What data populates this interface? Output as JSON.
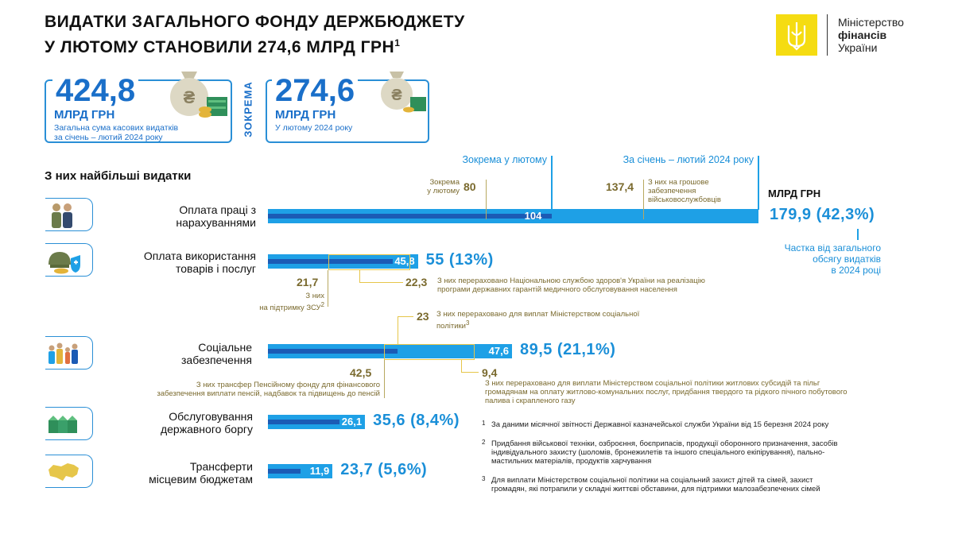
{
  "header": {
    "title_line1": "ВИДАТКИ ЗАГАЛЬНОГО ФОНДУ ДЕРЖБЮДЖЕТУ",
    "title_line2": "У ЛЮТОМУ СТАНОВИЛИ 274,6 МЛРД ГРН",
    "title_footnote": "1"
  },
  "logo": {
    "line1": "Міністерство",
    "line2": "фінансів",
    "line3": "України",
    "color": "#f5dc12"
  },
  "summary": {
    "total": {
      "value": "424,8",
      "unit": "МЛРД ГРН",
      "caption1": "Загальна сума касових видатків",
      "caption2": "за січень – лютий 2024 року"
    },
    "zokrema": "ЗОКРЕМА",
    "month": {
      "value": "274,6",
      "unit": "МЛРД ГРН",
      "caption1": "У лютому 2024 року"
    }
  },
  "section_title": "З них найбільші видатки",
  "units_label": "МЛРД ГРН",
  "legend": {
    "month": "Зокрема у лютому",
    "period": "За січень – лютий 2024 року"
  },
  "chart_data": {
    "type": "bar",
    "orientation": "horizontal",
    "categories": [
      "Оплата праці з нарахуваннями",
      "Оплата використання товарів і послуг",
      "Соціальне забезпечення",
      "Обслуговування державного боргу",
      "Трансферти місцевим бюджетам"
    ],
    "series": [
      {
        "name": "За січень – лютий 2024 року",
        "values": [
          179.9,
          55,
          89.5,
          35.6,
          23.7
        ]
      },
      {
        "name": "Зокрема у лютому",
        "values": [
          104,
          45.8,
          47.6,
          26.1,
          11.9
        ]
      }
    ],
    "total_labels": [
      "179,9 (42,3%)",
      "55 (13%)",
      "89,5 (21,1%)",
      "35,6 (8,4%)",
      "23,7 (5,6%)"
    ],
    "month_labels": [
      "104",
      "45,8",
      "47,6",
      "26,1",
      "11,9"
    ],
    "xlim": [
      0,
      179.9
    ],
    "colors": {
      "period": "#1ea0e6",
      "month": "#1b5bb5",
      "accent": "#e6c64a"
    }
  },
  "rows": [
    {
      "label1": "Оплата праці з",
      "label2": "нарахуваннями",
      "icon": "soldier-worker-icon"
    },
    {
      "label1": "Оплата використання",
      "label2": "товарів і послуг",
      "icon": "helmet-medical-icon"
    },
    {
      "label1": "Соціальне",
      "label2": "забезпечення",
      "icon": "family-icon"
    },
    {
      "label1": "Обслуговування",
      "label2": "державного боргу",
      "icon": "money-stacks-icon"
    },
    {
      "label1": "Трансферти",
      "label2": "місцевим бюджетам",
      "icon": "ukraine-map-icon"
    }
  ],
  "annotations": {
    "salary_feb_value": "80",
    "salary_feb_label1": "Зокрема",
    "salary_feb_label2": "у лютому",
    "salary_military_value": "137,4",
    "salary_military_label1": "З них на грошове",
    "salary_military_label2": "забезпечення",
    "salary_military_label3": "військовослужбовців",
    "share_label1": "Частка від загального",
    "share_label2": "обсягу видатків",
    "share_label3": "в 2024 році",
    "goods_zsu_value": "21,7",
    "goods_zsu_label1": "З них",
    "goods_zsu_label2": "на підтримку ЗСУ",
    "goods_zsu_fn": "2",
    "goods_nszu_value": "22,3",
    "goods_nszu_label1": "З них перераховано Національною службою здоров'я України на реалізацію",
    "goods_nszu_label2": "програми державних гарантій медичного обслуговування населення",
    "social_min_value": "23",
    "social_min_label1": "З них перераховано для виплат Міністерством соціальної",
    "social_min_label2": "політики",
    "social_min_fn": "3",
    "social_pension_value": "42,5",
    "social_pension_label1": "З них трансфер Пенсійному фонду для фінансового",
    "social_pension_label2": "забезпечення виплати пенсій, надбавок та підвищень до пенсій",
    "social_housing_value": "9,4",
    "social_housing_label1": "З них перераховано для виплати Міністерством соціальної політики  житлових субсидій та пільг",
    "social_housing_label2": "громадянам на оплату житлово-комунальних послуг, придбання твердого та рідкого пічного побутового",
    "social_housing_label3": "палива і скрапленого газу"
  },
  "footnotes": [
    {
      "mark": "1",
      "text1": "За даними місячної звітності Державної казначейської служби України від 15 березня 2024 року",
      "text2": "",
      "text3": ""
    },
    {
      "mark": "2",
      "text1": "Придбання військової техніки, озброєння, боєприпасів, продукції оборонного призначення, засобів",
      "text2": "індивідуального захисту (шоломів, бронежилетів та іншого спеціального екіпірування), пально-",
      "text3": "мастильних матеріалів, продуктів харчування"
    },
    {
      "mark": "3",
      "text1": "Для виплати Міністерством соціальної політики на соціальний захист дітей та сімей, захист",
      "text2": "громадян, які потрапили у складні життєві обставини, для підтримки малозабезпечених сімей",
      "text3": ""
    }
  ]
}
